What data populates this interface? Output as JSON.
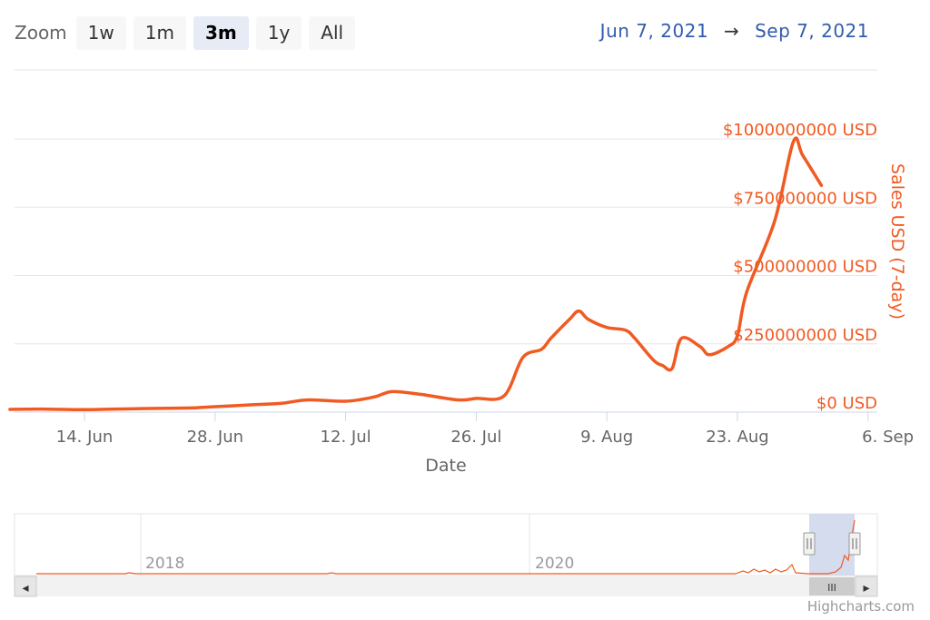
{
  "zoom": {
    "label": "Zoom",
    "buttons": [
      "1w",
      "1m",
      "3m",
      "1y",
      "All"
    ],
    "active": "3m"
  },
  "range": {
    "from": "Jun 7, 2021",
    "arrow": "→",
    "to": "Sep 7, 2021"
  },
  "colors": {
    "series": "#f15a22",
    "axis_label": "#666666",
    "range_text": "#335cad",
    "grid": "#e6e6e6",
    "navigator_mask": "#ccd6eb"
  },
  "credit": "Highcharts.com",
  "chart_data": {
    "type": "line",
    "xlabel": "Date",
    "ylabel": "Sales USD (7-day)",
    "ylim": [
      0,
      1000000000
    ],
    "ytick_values": [
      0,
      250000000,
      500000000,
      750000000,
      1000000000
    ],
    "ytick_labels": [
      "$0 USD",
      "$250000000 USD",
      "$500000000 USD",
      "$750000000 USD",
      "$1000000000 USD"
    ],
    "xtick_labels": [
      "14. Jun",
      "28. Jun",
      "12. Jul",
      "26. Jul",
      "9. Aug",
      "23. Aug",
      "6. Sep"
    ],
    "xtick_dates": [
      "2021-06-14",
      "2021-06-28",
      "2021-07-12",
      "2021-07-26",
      "2021-08-09",
      "2021-08-23",
      "2021-09-06"
    ],
    "grid": true,
    "series": [
      {
        "name": "Sales USD (7-day)",
        "x": [
          "2021-06-06",
          "2021-06-10",
          "2021-06-14",
          "2021-06-20",
          "2021-06-25",
          "2021-06-28",
          "2021-07-02",
          "2021-07-05",
          "2021-07-08",
          "2021-07-12",
          "2021-07-15",
          "2021-07-17",
          "2021-07-20",
          "2021-07-24",
          "2021-07-26",
          "2021-07-29",
          "2021-07-31",
          "2021-08-02",
          "2021-08-03",
          "2021-08-05",
          "2021-08-06",
          "2021-08-07",
          "2021-08-09",
          "2021-08-11",
          "2021-08-12",
          "2021-08-14",
          "2021-08-15",
          "2021-08-16",
          "2021-08-17",
          "2021-08-19",
          "2021-08-20",
          "2021-08-22",
          "2021-08-23",
          "2021-08-24",
          "2021-08-27",
          "2021-08-29",
          "2021-08-30",
          "2021-09-01"
        ],
        "values": [
          10000000,
          11000000,
          9000000,
          13000000,
          15000000,
          20000000,
          27000000,
          32000000,
          45000000,
          40000000,
          55000000,
          75000000,
          65000000,
          45000000,
          50000000,
          60000000,
          200000000,
          230000000,
          270000000,
          340000000,
          370000000,
          340000000,
          310000000,
          300000000,
          270000000,
          190000000,
          170000000,
          160000000,
          270000000,
          240000000,
          210000000,
          240000000,
          280000000,
          440000000,
          700000000,
          990000000,
          940000000,
          830000000
        ]
      }
    ]
  },
  "navigator": {
    "year_labels": [
      "2018",
      "2020"
    ],
    "scroll_grip": "III",
    "left_arrow": "◂",
    "right_arrow": "▸"
  }
}
